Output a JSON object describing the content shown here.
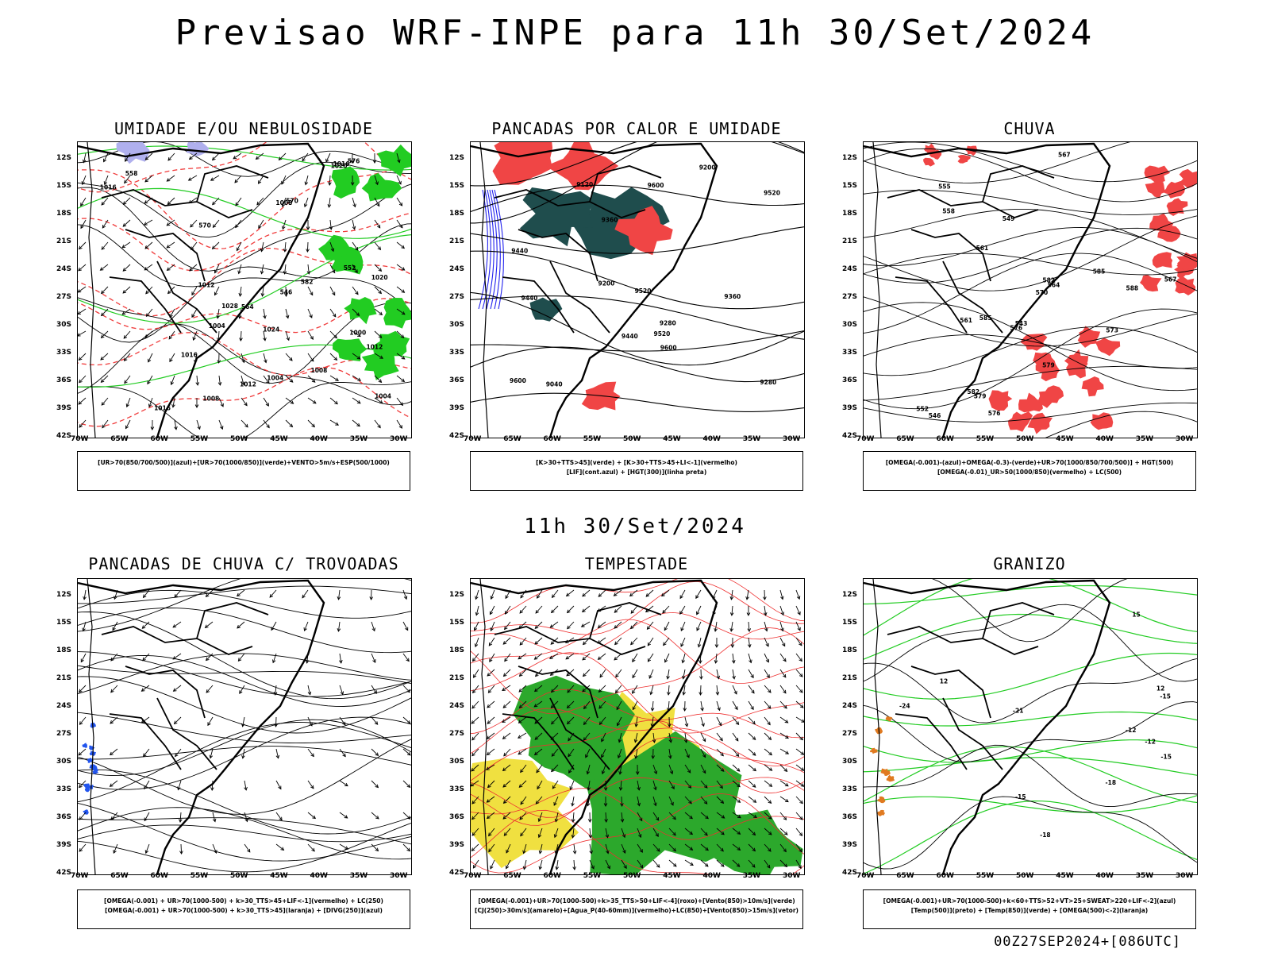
{
  "page": {
    "title": "Previsao WRF-INPE  para 11h 30/Set/2024",
    "subtitle": "11h 30/Set/2024",
    "footer": "00Z27SEP2024+[086UTC]"
  },
  "chart_data": [
    {
      "type": "map",
      "title": "UMIDADE E/OU NEBULOSIDADE",
      "lat_ticks": [
        "12S",
        "15S",
        "18S",
        "21S",
        "24S",
        "27S",
        "30S",
        "33S",
        "36S",
        "39S",
        "42S"
      ],
      "lon_ticks": [
        "70W",
        "65W",
        "60W",
        "55W",
        "50W",
        "45W",
        "40W",
        "35W",
        "30W"
      ],
      "legend_lines": [
        "[UR>70(850/700/500)](azul)+[UR>70(1000/850)](verde)+VENTO>5m/s+ESP(500/1000)"
      ],
      "contour_labels": [
        "1016",
        "1008",
        "1012",
        "1016",
        "1012",
        "1016",
        "1020",
        "1016",
        "1008",
        "1012",
        "1004",
        "1020",
        "1024",
        "1028",
        "1004",
        "1008",
        "1004",
        "1000",
        "570",
        "564",
        "570",
        "576",
        "552",
        "546",
        "582",
        "558"
      ]
    },
    {
      "type": "map",
      "title": "PANCADAS POR CALOR E UMIDADE",
      "lat_ticks": [
        "12S",
        "15S",
        "18S",
        "21S",
        "24S",
        "27S",
        "30S",
        "33S",
        "36S",
        "39S",
        "42S"
      ],
      "lon_ticks": [
        "70W",
        "65W",
        "60W",
        "55W",
        "50W",
        "45W",
        "40W",
        "35W",
        "30W"
      ],
      "legend_lines": [
        "[K>30+TTS>45](verde) + [K>30+TTS>45+LI<-1](vermelho)",
        "[LIF](cont.azul) + [HGT(300)](linha preta)"
      ],
      "contour_labels": [
        "9600",
        "9600",
        "9520",
        "9600",
        "9520",
        "9440",
        "9440",
        "9360",
        "9280",
        "9200",
        "9120",
        "9040",
        "9520",
        "9440",
        "9360",
        "9280",
        "9200"
      ]
    },
    {
      "type": "map",
      "title": "CHUVA",
      "lat_ticks": [
        "12S",
        "15S",
        "18S",
        "21S",
        "24S",
        "27S",
        "30S",
        "33S",
        "36S",
        "39S",
        "42S"
      ],
      "lon_ticks": [
        "70W",
        "65W",
        "60W",
        "55W",
        "50W",
        "45W",
        "40W",
        "35W",
        "30W"
      ],
      "legend_lines": [
        "[OMEGA(-0.001)-(azul)+OMEGA(-0.3)-(verde)+UR>70(1000/850/700/500)] + HGT(500)",
        "[OMEGA(-0.01)_UR>50(1000/850)(vermelho) + LC(500)"
      ],
      "contour_labels": [
        "585",
        "588",
        "585",
        "582",
        "579",
        "576",
        "573",
        "570",
        "567",
        "564",
        "561",
        "558",
        "555",
        "552",
        "549",
        "546",
        "543",
        "582",
        "579",
        "576",
        "567",
        "561"
      ]
    },
    {
      "type": "map",
      "title": "PANCADAS DE CHUVA C/ TROVOADAS",
      "lat_ticks": [
        "12S",
        "15S",
        "18S",
        "21S",
        "24S",
        "27S",
        "30S",
        "33S",
        "36S",
        "39S",
        "42S"
      ],
      "lon_ticks": [
        "70W",
        "65W",
        "60W",
        "55W",
        "50W",
        "45W",
        "40W",
        "35W",
        "30W"
      ],
      "legend_lines": [
        "[OMEGA(-0.001) + UR>70(1000-500) + k>30_TTS>45+LIF<-1](vermelho) + LC(250)",
        "[OMEGA(-0.001) + UR>70(1000-500) + k>30_TTS>45](laranja) + [DIVG(250)](azul)"
      ],
      "contour_labels": []
    },
    {
      "type": "map",
      "title": "TEMPESTADE",
      "lat_ticks": [
        "12S",
        "15S",
        "18S",
        "21S",
        "24S",
        "27S",
        "30S",
        "33S",
        "36S",
        "39S",
        "42S"
      ],
      "lon_ticks": [
        "70W",
        "65W",
        "60W",
        "55W",
        "50W",
        "45W",
        "40W",
        "35W",
        "30W"
      ],
      "legend_lines": [
        "[OMEGA(-0.001)+UR>70(1000-500)+k>35_TTS>50+LIF<-4](roxo)+[Vento(850)>10m/s](verde)",
        "[CJ(250)>30m/s](amarelo)+[Agua_P(40-60mm)](vermelho)+LC(850)+[Vento(850)>15m/s](vetor)"
      ],
      "contour_labels": []
    },
    {
      "type": "map",
      "title": "GRANIZO",
      "lat_ticks": [
        "12S",
        "15S",
        "18S",
        "21S",
        "24S",
        "27S",
        "30S",
        "33S",
        "36S",
        "39S",
        "42S"
      ],
      "lon_ticks": [
        "70W",
        "65W",
        "60W",
        "55W",
        "50W",
        "45W",
        "40W",
        "35W",
        "30W"
      ],
      "legend_lines": [
        "[OMEGA(-0.001)+UR>70(1000-500)+k<60+TTS>52+VT>25+SWEAT>220+LIF<-2](azul)",
        "[Temp(500)](preto) + [Temp(850)](verde) + [OMEGA(500)<-2](laranja)"
      ],
      "contour_labels": [
        "-12",
        "-12",
        "-15",
        "-15",
        "-18",
        "-18",
        "-21",
        "-24",
        "-15",
        "15",
        "12",
        "12"
      ]
    }
  ]
}
